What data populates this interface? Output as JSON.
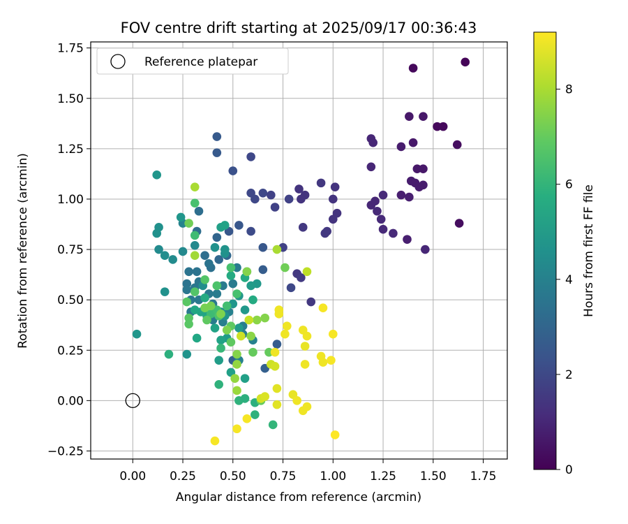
{
  "chart_data": {
    "type": "scatter",
    "title": "FOV centre drift starting at 2025/09/17 00:36:43",
    "xlabel": "Angular distance from reference (arcmin)",
    "ylabel": "Rotation from reference (arcmin)",
    "xlim": [
      -0.21,
      1.87
    ],
    "ylim": [
      -0.29,
      1.78
    ],
    "xticks": [
      0.0,
      0.25,
      0.5,
      0.75,
      1.0,
      1.25,
      1.5,
      1.75
    ],
    "xtick_labels": [
      "0.00",
      "0.25",
      "0.50",
      "0.75",
      "1.00",
      "1.25",
      "1.50",
      "1.75"
    ],
    "yticks": [
      -0.25,
      0.0,
      0.25,
      0.5,
      0.75,
      1.0,
      1.25,
      1.5,
      1.75
    ],
    "ytick_labels": [
      "−0.25",
      "0.00",
      "0.25",
      "0.50",
      "0.75",
      "1.00",
      "1.25",
      "1.50",
      "1.75"
    ],
    "grid": true,
    "legend": {
      "position": "upper-left",
      "entries": [
        "Reference platepar"
      ]
    },
    "reference_point": {
      "x": 0.0,
      "y": 0.0,
      "marker": "hollow-circle"
    },
    "colorbar": {
      "label": "Hours from first FF file",
      "colormap": "viridis",
      "range": [
        0,
        9.2
      ],
      "ticks": [
        0,
        2,
        4,
        6,
        8
      ],
      "tick_labels": [
        "0",
        "2",
        "4",
        "6",
        "8"
      ]
    },
    "series": [
      {
        "points": [
          [
            1.66,
            1.68,
            0.1
          ],
          [
            1.4,
            1.65,
            0.2
          ],
          [
            1.52,
            1.36,
            0.2
          ],
          [
            1.55,
            1.36,
            0.2
          ],
          [
            1.62,
            1.27,
            0.3
          ],
          [
            1.63,
            0.88,
            0.3
          ],
          [
            1.38,
            1.41,
            0.6
          ],
          [
            1.45,
            1.41,
            0.6
          ],
          [
            1.4,
            1.28,
            0.6
          ],
          [
            1.34,
            1.26,
            0.7
          ],
          [
            1.42,
            1.15,
            0.6
          ],
          [
            1.45,
            1.15,
            0.6
          ],
          [
            1.39,
            1.09,
            0.7
          ],
          [
            1.41,
            1.08,
            0.7
          ],
          [
            1.43,
            1.06,
            0.7
          ],
          [
            1.45,
            1.07,
            0.7
          ],
          [
            1.34,
            1.02,
            0.8
          ],
          [
            1.38,
            1.01,
            0.8
          ],
          [
            1.37,
            0.8,
            0.8
          ],
          [
            1.46,
            0.75,
            1.0
          ],
          [
            1.19,
            1.3,
            1.0
          ],
          [
            1.2,
            1.28,
            1.0
          ],
          [
            1.19,
            1.16,
            1.0
          ],
          [
            1.19,
            0.97,
            1.0
          ],
          [
            1.21,
            0.99,
            1.0
          ],
          [
            1.25,
            1.02,
            1.1
          ],
          [
            1.22,
            0.94,
            1.1
          ],
          [
            1.24,
            0.9,
            1.1
          ],
          [
            1.25,
            0.85,
            1.1
          ],
          [
            1.3,
            0.83,
            1.1
          ],
          [
            1.01,
            1.06,
            1.4
          ],
          [
            1.0,
            1.0,
            1.4
          ],
          [
            1.02,
            0.93,
            1.4
          ],
          [
            1.0,
            0.9,
            1.4
          ],
          [
            0.94,
            1.08,
            1.5
          ],
          [
            0.96,
            0.83,
            1.5
          ],
          [
            0.97,
            0.84,
            1.5
          ],
          [
            0.83,
            1.05,
            1.4
          ],
          [
            0.86,
            1.02,
            1.4
          ],
          [
            0.84,
            1.0,
            1.4
          ],
          [
            0.85,
            0.86,
            1.5
          ],
          [
            0.89,
            0.49,
            1.5
          ],
          [
            0.82,
            0.63,
            1.5
          ],
          [
            0.84,
            0.61,
            1.6
          ],
          [
            0.78,
            1.0,
            1.8
          ],
          [
            0.69,
            1.02,
            1.8
          ],
          [
            0.71,
            0.96,
            1.8
          ],
          [
            0.75,
            0.76,
            1.8
          ],
          [
            0.79,
            0.56,
            2.0
          ],
          [
            0.59,
            1.21,
            2.0
          ],
          [
            0.59,
            1.03,
            2.0
          ],
          [
            0.61,
            1.0,
            2.0
          ],
          [
            0.65,
            1.03,
            2.0
          ],
          [
            0.59,
            0.84,
            2.1
          ],
          [
            0.5,
            1.14,
            2.3
          ],
          [
            0.42,
            1.31,
            2.6
          ],
          [
            0.42,
            1.23,
            2.6
          ],
          [
            0.48,
            0.84,
            2.5
          ],
          [
            0.53,
            0.87,
            2.5
          ],
          [
            0.65,
            0.76,
            2.5
          ],
          [
            0.65,
            0.65,
            2.7
          ],
          [
            0.72,
            0.28,
            2.7
          ],
          [
            0.66,
            0.16,
            2.8
          ],
          [
            0.5,
            0.2,
            2.8
          ],
          [
            0.53,
            0.2,
            2.9
          ],
          [
            0.42,
            0.81,
            3.0
          ],
          [
            0.43,
            0.7,
            3.1
          ],
          [
            0.47,
            0.72,
            3.1
          ],
          [
            0.32,
            0.84,
            3.3
          ],
          [
            0.33,
            0.94,
            3.3
          ],
          [
            0.36,
            0.72,
            3.3
          ],
          [
            0.39,
            0.66,
            3.4
          ],
          [
            0.28,
            0.64,
            3.5
          ],
          [
            0.32,
            0.64,
            3.5
          ],
          [
            0.38,
            0.68,
            3.5
          ],
          [
            0.27,
            0.58,
            3.5
          ],
          [
            0.31,
            0.56,
            3.6
          ],
          [
            0.33,
            0.59,
            3.6
          ],
          [
            0.27,
            0.55,
            3.6
          ],
          [
            0.29,
            0.5,
            3.7
          ],
          [
            0.29,
            0.44,
            3.7
          ],
          [
            0.33,
            0.5,
            3.7
          ],
          [
            0.38,
            0.53,
            3.7
          ],
          [
            0.4,
            0.48,
            3.7
          ],
          [
            0.42,
            0.53,
            3.8
          ],
          [
            0.45,
            0.57,
            3.8
          ],
          [
            0.5,
            0.58,
            3.8
          ],
          [
            0.52,
            0.66,
            3.8
          ],
          [
            0.57,
            0.64,
            3.8
          ],
          [
            0.4,
            0.4,
            3.8
          ],
          [
            0.45,
            0.39,
            3.9
          ],
          [
            0.55,
            0.37,
            3.9
          ],
          [
            0.55,
            0.33,
            3.9
          ],
          [
            0.6,
            0.3,
            4.0
          ],
          [
            0.53,
            0.2,
            4.0
          ],
          [
            0.48,
            0.44,
            4.0
          ],
          [
            0.25,
            0.88,
            4.1
          ],
          [
            0.31,
            0.77,
            4.3
          ],
          [
            0.25,
            0.74,
            4.3
          ],
          [
            0.2,
            0.7,
            4.4
          ],
          [
            0.16,
            0.72,
            4.5
          ],
          [
            0.13,
            0.75,
            4.4
          ],
          [
            0.12,
            0.83,
            4.6
          ],
          [
            0.13,
            0.86,
            4.6
          ],
          [
            0.12,
            1.12,
            4.8
          ],
          [
            0.24,
            0.91,
            4.8
          ],
          [
            0.16,
            0.54,
            4.6
          ],
          [
            0.02,
            0.33,
            4.8
          ],
          [
            0.27,
            0.23,
            4.7
          ],
          [
            0.35,
            0.57,
            4.5
          ],
          [
            0.46,
            0.73,
            4.6
          ],
          [
            0.46,
            0.75,
            4.7
          ],
          [
            0.41,
            0.76,
            4.6
          ],
          [
            0.44,
            0.44,
            4.6
          ],
          [
            0.46,
            0.42,
            4.7
          ],
          [
            0.5,
            0.48,
            4.8
          ],
          [
            0.53,
            0.52,
            4.8
          ],
          [
            0.56,
            0.45,
            4.9
          ],
          [
            0.62,
            0.58,
            4.9
          ],
          [
            0.59,
            0.57,
            5.0
          ],
          [
            0.53,
            0.36,
            5.0
          ],
          [
            0.47,
            0.31,
            5.0
          ],
          [
            0.43,
            0.2,
            5.1
          ],
          [
            0.56,
            0.11,
            5.2
          ],
          [
            0.49,
            0.14,
            5.2
          ],
          [
            0.44,
            0.86,
            5.2
          ],
          [
            0.46,
            0.87,
            5.3
          ],
          [
            0.44,
            0.3,
            5.3
          ],
          [
            0.41,
            0.36,
            5.3
          ],
          [
            0.37,
            0.42,
            5.4
          ],
          [
            0.34,
            0.44,
            5.4
          ],
          [
            0.31,
            0.45,
            5.5
          ],
          [
            0.32,
            0.31,
            5.5
          ],
          [
            0.36,
            0.51,
            5.6
          ],
          [
            0.49,
            0.62,
            5.6
          ],
          [
            0.56,
            0.61,
            5.6
          ],
          [
            0.6,
            0.5,
            5.6
          ],
          [
            0.18,
            0.23,
            5.8
          ],
          [
            0.43,
            0.08,
            5.9
          ],
          [
            0.53,
            0.0,
            5.9
          ],
          [
            0.56,
            0.01,
            5.8
          ],
          [
            0.61,
            -0.01,
            5.8
          ],
          [
            0.61,
            -0.07,
            5.9
          ],
          [
            0.7,
            -0.12,
            6.0
          ],
          [
            0.44,
            0.26,
            6.1
          ],
          [
            0.39,
            0.43,
            6.3
          ],
          [
            0.41,
            0.44,
            6.3
          ],
          [
            0.42,
            0.45,
            6.4
          ],
          [
            0.47,
            0.47,
            6.4
          ],
          [
            0.31,
            0.82,
            6.3
          ],
          [
            0.31,
            0.98,
            6.5
          ],
          [
            0.49,
            0.66,
            6.5
          ],
          [
            0.52,
            0.53,
            6.5
          ],
          [
            0.43,
            0.42,
            6.6
          ],
          [
            0.42,
            0.57,
            6.6
          ],
          [
            0.36,
            0.6,
            6.7
          ],
          [
            0.31,
            0.54,
            6.7
          ],
          [
            0.27,
            0.49,
            6.8
          ],
          [
            0.28,
            0.41,
            6.8
          ],
          [
            0.28,
            0.38,
            6.8
          ],
          [
            0.37,
            0.4,
            6.9
          ],
          [
            0.49,
            0.37,
            6.9
          ],
          [
            0.49,
            0.29,
            6.9
          ],
          [
            0.6,
            0.24,
            7.0
          ],
          [
            0.68,
            0.24,
            7.0
          ],
          [
            0.64,
            0.0,
            7.0
          ],
          [
            0.76,
            0.66,
            7.2
          ],
          [
            0.28,
            0.88,
            7.2
          ],
          [
            0.36,
            0.46,
            7.3
          ],
          [
            0.39,
            0.47,
            7.3
          ],
          [
            0.44,
            0.43,
            7.4
          ],
          [
            0.47,
            0.35,
            7.4
          ],
          [
            0.52,
            0.23,
            7.5
          ],
          [
            0.57,
            0.64,
            7.5
          ],
          [
            0.66,
            0.41,
            7.5
          ],
          [
            0.62,
            0.4,
            7.6
          ],
          [
            0.59,
            0.32,
            7.6
          ],
          [
            0.52,
            0.18,
            7.7
          ],
          [
            0.51,
            0.11,
            7.7
          ],
          [
            0.52,
            0.05,
            7.8
          ],
          [
            0.31,
            0.72,
            7.9
          ],
          [
            0.31,
            1.06,
            8.0
          ],
          [
            0.72,
            0.75,
            8.0
          ],
          [
            0.87,
            0.64,
            8.3
          ],
          [
            0.58,
            0.4,
            8.4
          ],
          [
            0.54,
            0.32,
            8.5
          ],
          [
            0.69,
            0.18,
            8.5
          ],
          [
            0.71,
            0.17,
            8.6
          ],
          [
            0.64,
            0.01,
            8.6
          ],
          [
            0.66,
            0.02,
            8.7
          ],
          [
            0.72,
            0.06,
            8.8
          ],
          [
            0.72,
            -0.02,
            8.8
          ],
          [
            0.8,
            0.03,
            8.9
          ],
          [
            0.82,
            0.0,
            9.0
          ],
          [
            0.85,
            -0.05,
            9.0
          ],
          [
            0.87,
            -0.03,
            9.0
          ],
          [
            0.86,
            0.27,
            8.9
          ],
          [
            0.86,
            0.18,
            9.0
          ],
          [
            0.85,
            0.35,
            9.0
          ],
          [
            0.87,
            0.32,
            9.0
          ],
          [
            0.94,
            0.22,
            9.0
          ],
          [
            0.95,
            0.19,
            9.0
          ],
          [
            0.99,
            0.2,
            9.1
          ],
          [
            1.0,
            0.33,
            9.1
          ],
          [
            0.95,
            0.46,
            9.1
          ],
          [
            0.73,
            0.43,
            9.0
          ],
          [
            0.73,
            0.45,
            9.0
          ],
          [
            0.77,
            0.37,
            9.0
          ],
          [
            0.76,
            0.33,
            9.0
          ],
          [
            0.71,
            0.24,
            9.0
          ],
          [
            0.57,
            -0.09,
            9.1
          ],
          [
            0.52,
            -0.14,
            9.1
          ],
          [
            0.41,
            -0.2,
            9.1
          ],
          [
            1.01,
            -0.17,
            9.2
          ]
        ]
      }
    ]
  }
}
